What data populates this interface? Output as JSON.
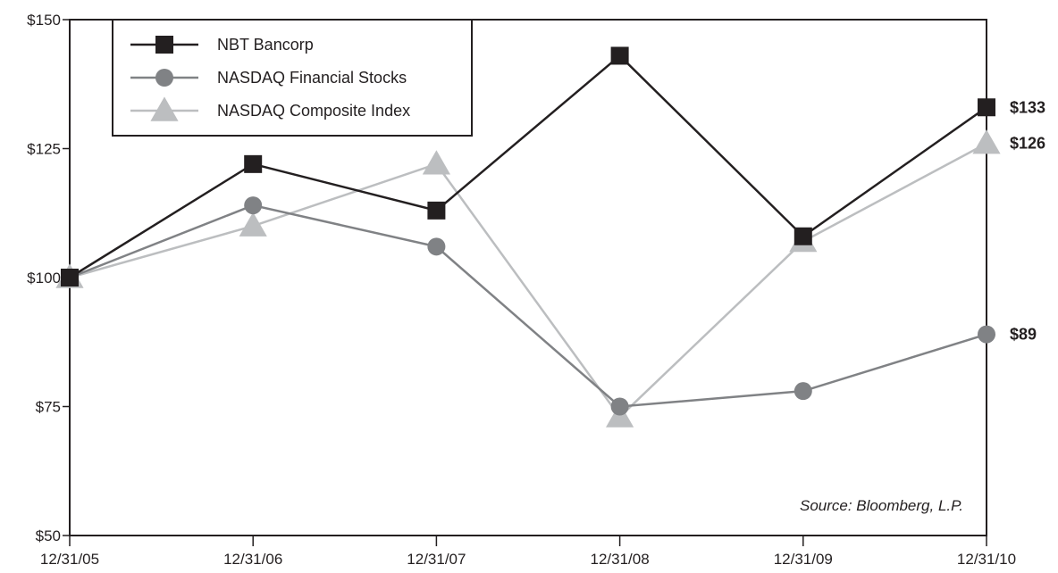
{
  "chart_data": {
    "type": "line",
    "categories": [
      "12/31/05",
      "12/31/06",
      "12/31/07",
      "12/31/08",
      "12/31/09",
      "12/31/10"
    ],
    "ylim": [
      50,
      150
    ],
    "yticks": [
      50,
      75,
      100,
      125,
      150
    ],
    "ytick_labels": [
      "$50",
      "$75",
      "$100",
      "$125",
      "$150"
    ],
    "grid": false,
    "legend_position": "top-left",
    "series": [
      {
        "name": "NBT Bancorp",
        "marker": "square",
        "color": "#231f20",
        "values": [
          100,
          122,
          113,
          143,
          108,
          133
        ],
        "end_label": "$133"
      },
      {
        "name": "NASDAQ Financial Stocks",
        "marker": "circle",
        "color": "#808285",
        "values": [
          100,
          114,
          106,
          75,
          78,
          89
        ],
        "end_label": "$89"
      },
      {
        "name": "NASDAQ Composite Index",
        "marker": "triangle",
        "color": "#bcbec0",
        "values": [
          100,
          110,
          122,
          73,
          107,
          126
        ],
        "end_label": "$126"
      }
    ],
    "annotation": "Source: Bloomberg, L.P."
  }
}
